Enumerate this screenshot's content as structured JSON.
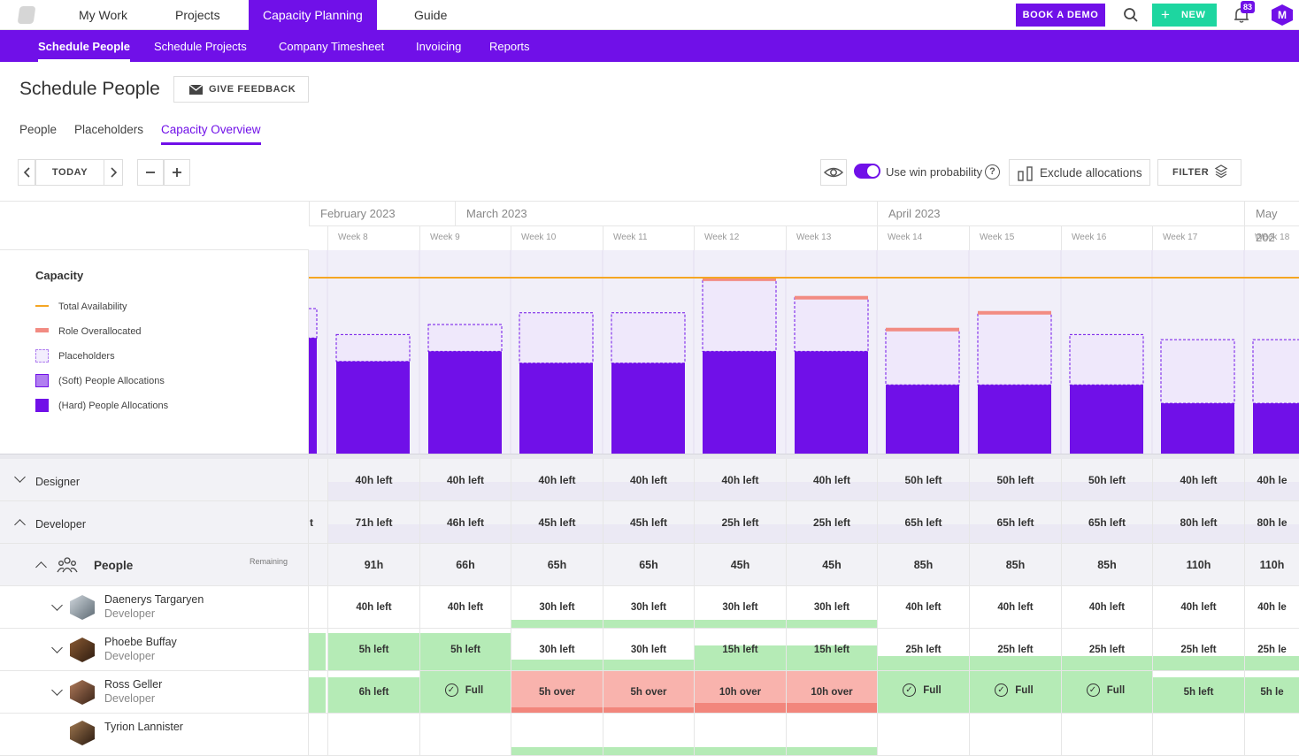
{
  "topnav": {
    "items": [
      "My Work",
      "Projects",
      "Capacity Planning",
      "Guide"
    ],
    "book_demo": "BOOK A DEMO",
    "new_label": "NEW",
    "notif_count": "83",
    "user_initial": "M"
  },
  "subnav": {
    "items": [
      "Schedule People",
      "Schedule Projects",
      "Company Timesheet",
      "Invoicing",
      "Reports"
    ]
  },
  "page": {
    "title": "Schedule People",
    "feedback": "GIVE FEEDBACK",
    "tabs": [
      "People",
      "Placeholders",
      "Capacity Overview"
    ],
    "active_tab": "Capacity Overview"
  },
  "toolbar": {
    "today": "TODAY",
    "win_prob": "Use win probability",
    "win_prob_on": true,
    "exclude": "Exclude allocations",
    "filter": "FILTER"
  },
  "timeline": {
    "months": [
      "February 2023",
      "March 2023",
      "April 2023",
      "May 202"
    ],
    "weeks": [
      "Week 8",
      "Week 9",
      "Week 10",
      "Week 11",
      "Week 12",
      "Week 13",
      "Week 14",
      "Week 15",
      "Week 16",
      "Week 17",
      "Week 18"
    ]
  },
  "legend": {
    "title": "Capacity",
    "items": [
      {
        "label": "Total Availability",
        "color": "#f5a623"
      },
      {
        "label": "Role Overallocated",
        "color": "#f28b82"
      },
      {
        "label": "Placeholders",
        "color": "#efe8fb"
      },
      {
        "label": "(Soft) People Allocations",
        "color": "#b07ff0"
      },
      {
        "label": "(Hard) People Allocations",
        "color": "#7010e8"
      }
    ]
  },
  "chart_data": {
    "type": "bar",
    "categories": [
      "Week 8",
      "Week 9",
      "Week 10",
      "Week 11",
      "Week 12",
      "Week 13",
      "Week 14",
      "Week 15",
      "Week 16",
      "Week 17",
      "Week 18"
    ],
    "total_availability": 210,
    "series": [
      {
        "name": "(Hard) People Allocations",
        "values": [
          110,
          122,
          108,
          108,
          122,
          122,
          82,
          82,
          82,
          60,
          60
        ]
      },
      {
        "name": "Placeholders",
        "values": [
          32,
          32,
          60,
          60,
          86,
          64,
          66,
          86,
          60,
          76,
          76
        ]
      },
      {
        "name": "Role Overallocated",
        "values": [
          0,
          0,
          0,
          0,
          4,
          4,
          4,
          4,
          0,
          0,
          0
        ]
      }
    ],
    "partial_prev_week": {
      "hard": 138,
      "placeholder": 35
    },
    "ylim": [
      0,
      230
    ]
  },
  "rows": {
    "designer": {
      "label": "Designer",
      "values": [
        "40h left",
        "40h left",
        "40h left",
        "40h left",
        "40h left",
        "40h left",
        "50h left",
        "50h left",
        "50h left",
        "40h left",
        "40h le"
      ]
    },
    "developer": {
      "label": "Developer",
      "prev": "t",
      "values": [
        "71h left",
        "46h left",
        "45h left",
        "45h left",
        "25h left",
        "25h left",
        "65h left",
        "65h left",
        "65h left",
        "80h left",
        "80h le"
      ]
    },
    "people": {
      "label": "People",
      "remaining": "Remaining",
      "values": [
        "91h",
        "66h",
        "65h",
        "65h",
        "45h",
        "45h",
        "85h",
        "85h",
        "85h",
        "110h",
        "110h"
      ]
    },
    "persons": [
      {
        "name": "Daenerys Targaryen",
        "role": "Developer",
        "values": [
          "40h left",
          "40h left",
          "30h left",
          "30h left",
          "30h left",
          "30h left",
          "40h left",
          "40h left",
          "40h left",
          "40h left",
          "40h le"
        ],
        "fills": [
          0,
          0,
          0.2,
          0.2,
          0.2,
          0.2,
          0,
          0,
          0,
          0,
          0
        ],
        "state": [
          "none",
          "none",
          "ok",
          "ok",
          "ok",
          "ok",
          "none",
          "none",
          "none",
          "none",
          "none"
        ]
      },
      {
        "name": "Phoebe Buffay",
        "role": "Developer",
        "values": [
          "5h left",
          "5h left",
          "30h left",
          "30h left",
          "15h left",
          "15h left",
          "25h left",
          "25h left",
          "25h left",
          "25h left",
          "25h le"
        ],
        "fills": [
          0.9,
          0.9,
          0.25,
          0.25,
          0.6,
          0.6,
          0.35,
          0.35,
          0.35,
          0.35,
          0.35
        ],
        "state": [
          "ok",
          "ok",
          "ok",
          "ok",
          "ok",
          "ok",
          "ok",
          "ok",
          "ok",
          "ok",
          "ok"
        ]
      },
      {
        "name": "Ross Geller",
        "role": "Developer",
        "values": [
          "6h left",
          "Full",
          "5h over",
          "5h over",
          "10h over",
          "10h over",
          "Full",
          "Full",
          "Full",
          "5h left",
          "5h le"
        ],
        "fills": [
          0.85,
          1,
          1,
          1,
          1,
          1,
          1,
          1,
          1,
          0.85,
          0.85
        ],
        "state": [
          "ok",
          "full",
          "over",
          "over",
          "over2",
          "over2",
          "full",
          "full",
          "full",
          "ok",
          "ok"
        ]
      },
      {
        "name": "Tyrion Lannister",
        "role": "Developer",
        "values": [
          "",
          "",
          "",
          "",
          "",
          "",
          "",
          "",
          "",
          "",
          ""
        ],
        "fills": [
          0,
          0,
          0.2,
          0.2,
          0.2,
          0.2,
          0,
          0,
          0,
          0,
          0
        ],
        "state": [
          "none",
          "none",
          "ok",
          "ok",
          "ok",
          "ok",
          "none",
          "none",
          "none",
          "none",
          "none"
        ]
      }
    ]
  }
}
